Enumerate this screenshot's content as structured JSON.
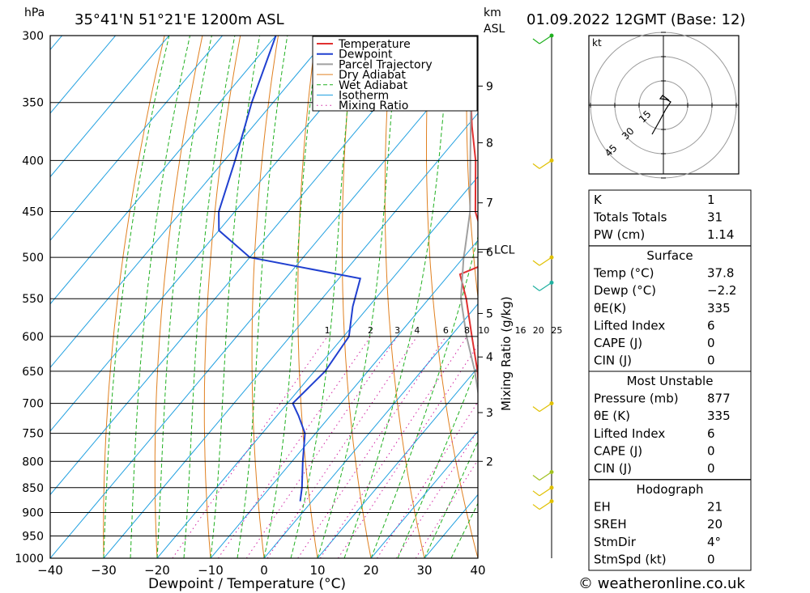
{
  "header": {
    "location": "35°41'N  51°21'E  1200m  ASL",
    "hpa_unit": "hPa",
    "km_unit": "km",
    "asl_unit": "ASL",
    "datetime": "01.09.2022  12GMT  (Base: 12)"
  },
  "footer": {
    "credit": "© weatheronline.co.uk"
  },
  "colors": {
    "temperature": "#e03030",
    "dewpoint": "#2040d0",
    "parcel": "#a0a0a0",
    "dry_adiabat": "#e08020",
    "wet_adiabat": "#20b020",
    "isotherm": "#20a0e0",
    "mixing_ratio": "#d020a0"
  },
  "chart_data": {
    "type": "line",
    "title": "35°41'N  51°21'E  1200m  ASL",
    "xlabel": "Dewpoint / Temperature (°C)",
    "ylabel": "hPa",
    "secondary_ylabel": "Mixing Ratio (g/kg)",
    "xlim": [
      -40,
      40
    ],
    "ylim": [
      1000,
      300
    ],
    "x_ticks": [
      "−40",
      "−30",
      "−20",
      "−10",
      "0",
      "10",
      "20",
      "30",
      "40"
    ],
    "pressure_levels": [
      300,
      350,
      400,
      450,
      500,
      550,
      600,
      650,
      700,
      750,
      800,
      850,
      900,
      950,
      1000
    ],
    "km_ticks": [
      {
        "label": "9",
        "p": 337
      },
      {
        "label": "8",
        "p": 384
      },
      {
        "label": "7",
        "p": 441
      },
      {
        "label": "6",
        "p": 494
      },
      {
        "label": "5",
        "p": 569
      },
      {
        "label": "4",
        "p": 629
      },
      {
        "label": "3",
        "p": 715
      },
      {
        "label": "2",
        "p": 800
      }
    ],
    "lcl": {
      "label": "LCL",
      "p": 491
    },
    "mixing_ratio_labels": [
      "1",
      "2",
      "3",
      "4",
      "6",
      "8",
      "10",
      "16",
      "20",
      "25"
    ],
    "legend": [
      {
        "name": "Temperature",
        "style": "temperature"
      },
      {
        "name": "Dewpoint",
        "style": "dewpoint"
      },
      {
        "name": "Parcel Trajectory",
        "style": "parcel"
      },
      {
        "name": "Dry Adiabat",
        "style": "dry_adiabat"
      },
      {
        "name": "Wet Adiabat",
        "style": "wet_adiabat"
      },
      {
        "name": "Isotherm",
        "style": "isotherm"
      },
      {
        "name": "Mixing Ratio",
        "style": "mixing_ratio"
      }
    ],
    "series": [
      {
        "name": "Temperature",
        "points": [
          [
            877,
            37.8
          ],
          [
            850,
            33
          ],
          [
            800,
            27
          ],
          [
            750,
            21
          ],
          [
            700,
            16
          ],
          [
            650,
            10.5
          ],
          [
            600,
            4
          ],
          [
            550,
            -3
          ],
          [
            520,
            -8
          ],
          [
            508,
            -5
          ],
          [
            500,
            -7
          ],
          [
            470,
            -11
          ],
          [
            450,
            -15
          ],
          [
            400,
            -23
          ],
          [
            370,
            -29
          ],
          [
            350,
            -33
          ]
        ]
      },
      {
        "name": "Dewpoint",
        "points": [
          [
            877,
            -2.2
          ],
          [
            850,
            -4
          ],
          [
            800,
            -8
          ],
          [
            750,
            -12
          ],
          [
            720,
            -16
          ],
          [
            700,
            -19
          ],
          [
            650,
            -18
          ],
          [
            600,
            -19
          ],
          [
            560,
            -23
          ],
          [
            525,
            -26
          ],
          [
            500,
            -50
          ],
          [
            470,
            -60
          ],
          [
            450,
            -63
          ],
          [
            400,
            -68
          ],
          [
            350,
            -74
          ],
          [
            300,
            -80
          ]
        ]
      },
      {
        "name": "Parcel Trajectory",
        "points": [
          [
            877,
            37.8
          ],
          [
            850,
            34
          ],
          [
            800,
            28
          ],
          [
            750,
            22
          ],
          [
            700,
            16
          ],
          [
            650,
            10
          ],
          [
            600,
            3
          ],
          [
            550,
            -4
          ],
          [
            500,
            -10
          ],
          [
            491,
            -11
          ],
          [
            450,
            -16
          ],
          [
            400,
            -24
          ],
          [
            350,
            -33
          ],
          [
            300,
            -43
          ]
        ]
      }
    ]
  },
  "indices": {
    "rows": [
      {
        "label": "K",
        "value": "1"
      },
      {
        "label": "Totals Totals",
        "value": "31"
      },
      {
        "label": "PW (cm)",
        "value": "1.14"
      }
    ]
  },
  "surface": {
    "title": "Surface",
    "rows": [
      {
        "label": "Temp (°C)",
        "value": "37.8"
      },
      {
        "label": "Dewp (°C)",
        "value": "−2.2"
      },
      {
        "label": "θE(K)",
        "value": "335"
      },
      {
        "label": "Lifted Index",
        "value": "6"
      },
      {
        "label": "CAPE (J)",
        "value": "0"
      },
      {
        "label": "CIN (J)",
        "value": "0"
      }
    ]
  },
  "most_unstable": {
    "title": "Most Unstable",
    "rows": [
      {
        "label": "Pressure (mb)",
        "value": "877"
      },
      {
        "label": "θE (K)",
        "value": "335"
      },
      {
        "label": "Lifted Index",
        "value": "6"
      },
      {
        "label": "CAPE (J)",
        "value": "0"
      },
      {
        "label": "CIN (J)",
        "value": "0"
      }
    ]
  },
  "hodograph_table": {
    "title": "Hodograph",
    "rows": [
      {
        "label": "EH",
        "value": "21"
      },
      {
        "label": "SREH",
        "value": "20"
      },
      {
        "label": "StmDir",
        "value": "4°"
      },
      {
        "label": "StmSpd (kt)",
        "value": "0"
      }
    ]
  },
  "hodograph": {
    "unit": "kt",
    "ring_labels": [
      "15",
      "30",
      "45"
    ]
  },
  "wind_barbs": [
    {
      "p": 300,
      "color": "#20b020"
    },
    {
      "p": 400,
      "color": "#e0c000"
    },
    {
      "p": 500,
      "color": "#e0c000"
    },
    {
      "p": 530,
      "color": "#20b0a0"
    },
    {
      "p": 700,
      "color": "#e0c000"
    },
    {
      "p": 820,
      "color": "#a0c020"
    },
    {
      "p": 850,
      "color": "#e0c000"
    },
    {
      "p": 877,
      "color": "#e0c000"
    }
  ]
}
